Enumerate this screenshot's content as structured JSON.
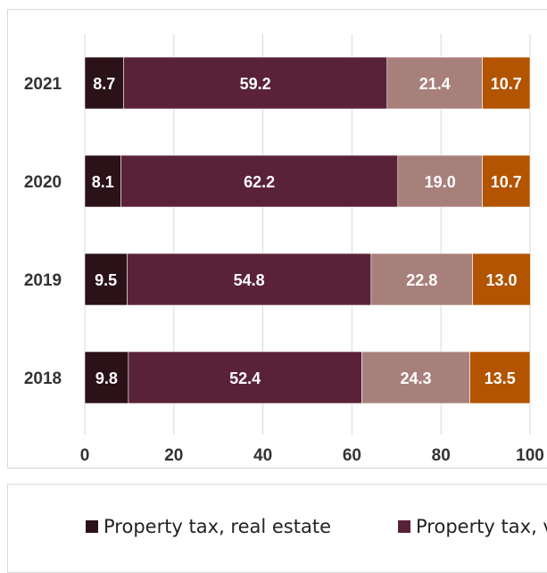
{
  "chart_data": {
    "type": "bar",
    "orientation": "horizontal",
    "stacked": true,
    "categories": [
      "2021",
      "2020",
      "2019",
      "2018"
    ],
    "series": [
      {
        "name": "Property tax, real estate",
        "values": [
          8.7,
          8.1,
          9.5,
          9.8
        ],
        "color": "#2b1218"
      },
      {
        "name": "Property tax, v",
        "values": [
          59.2,
          62.2,
          54.8,
          52.4
        ],
        "color": "#5a2238"
      },
      {
        "name": "",
        "values": [
          21.4,
          19.0,
          22.8,
          24.3
        ],
        "color": "#a8807b"
      },
      {
        "name": "",
        "values": [
          10.7,
          10.7,
          13.0,
          13.5
        ],
        "color": "#b35400"
      }
    ],
    "data_labels": [
      [
        "8.7",
        "8.1",
        "9.5",
        "9.8"
      ],
      [
        "59.2",
        "62.2",
        "54.8",
        "52.4"
      ],
      [
        "21.4",
        "19.0",
        "22.8",
        "24.3"
      ],
      [
        "10.7",
        "10.7",
        "13.0",
        "13.5"
      ]
    ],
    "xlim": [
      0,
      100
    ],
    "xticks": [
      "0",
      "20",
      "40",
      "60",
      "80",
      "100"
    ],
    "grid": true,
    "legend_position": "bottom",
    "title": "",
    "xlabel": "",
    "ylabel": ""
  }
}
